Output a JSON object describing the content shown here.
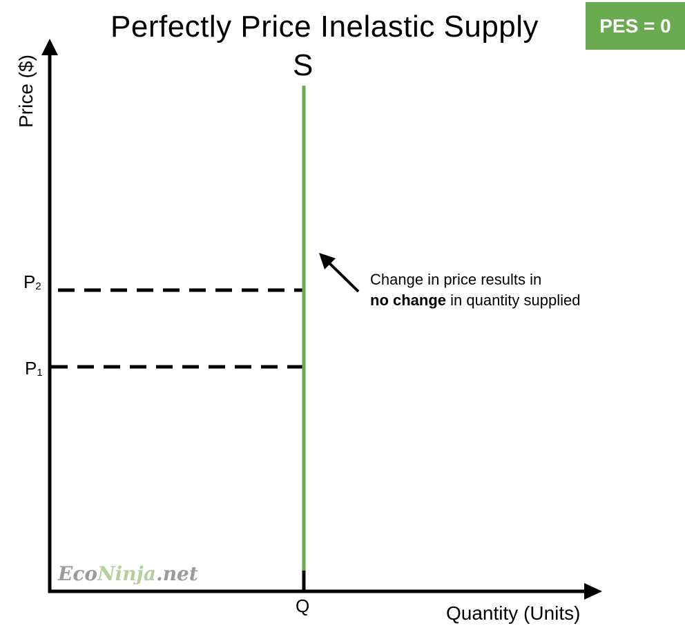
{
  "title": "Perfectly Price Inelastic Supply",
  "badge": "PES = 0",
  "curve_label": "S",
  "axes": {
    "y_label": "Price ($)",
    "x_label": "Quantity (Units)"
  },
  "ticks": {
    "p2": {
      "main": "P",
      "sub": "2"
    },
    "p1": {
      "main": "P",
      "sub": "1"
    },
    "q": "Q"
  },
  "annotation": {
    "line1": "Change in price results in",
    "bold": "no change",
    "rest": " in quantity supplied"
  },
  "watermark": {
    "part1": "Eco",
    "part2": "Ninja",
    "part3": ".net"
  },
  "colors": {
    "supply": "#6aaa51",
    "badge": "#6aaa51",
    "axis": "#000000"
  },
  "chart_data": {
    "type": "line",
    "series": [
      {
        "name": "S",
        "x": [
          "Q",
          "Q"
        ],
        "y": [
          "bottom",
          "top"
        ]
      }
    ],
    "price_levels": [
      "P₁",
      "P₂"
    ],
    "quantity_levels": [
      "Q"
    ],
    "grid": false
  }
}
